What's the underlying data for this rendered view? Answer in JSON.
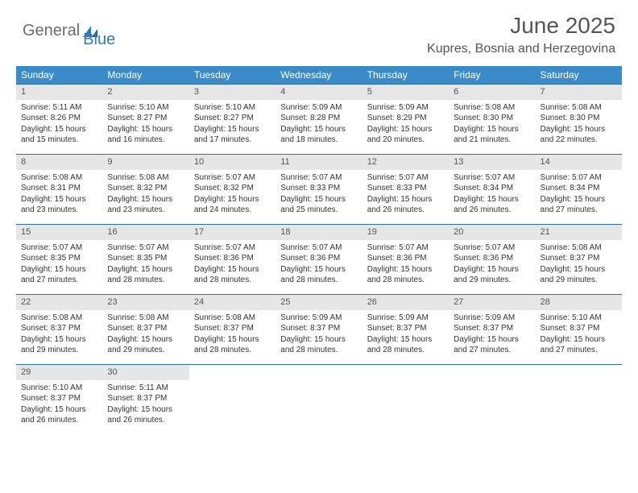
{
  "brand": {
    "part1": "General",
    "part2": "Blue"
  },
  "title": "June 2025",
  "location": "Kupres, Bosnia and Herzegovina",
  "style": {
    "header_bg": "#3b8bc9",
    "header_text": "#ffffff",
    "daynum_bg": "#e6e6e6",
    "week_border": "#2f6fa8",
    "body_text": "#333333",
    "title_color": "#555555",
    "logo_gray": "#6b6b6b",
    "logo_blue": "#2f7bbf",
    "title_fontsize": 28,
    "location_fontsize": 16,
    "dayheader_fontsize": 12,
    "cell_fontsize": 10
  },
  "dayNames": [
    "Sunday",
    "Monday",
    "Tuesday",
    "Wednesday",
    "Thursday",
    "Friday",
    "Saturday"
  ],
  "weeks": [
    [
      {
        "n": "1",
        "sunrise": "Sunrise: 5:11 AM",
        "sunset": "Sunset: 8:26 PM",
        "daylight": "Daylight: 15 hours and 15 minutes."
      },
      {
        "n": "2",
        "sunrise": "Sunrise: 5:10 AM",
        "sunset": "Sunset: 8:27 PM",
        "daylight": "Daylight: 15 hours and 16 minutes."
      },
      {
        "n": "3",
        "sunrise": "Sunrise: 5:10 AM",
        "sunset": "Sunset: 8:27 PM",
        "daylight": "Daylight: 15 hours and 17 minutes."
      },
      {
        "n": "4",
        "sunrise": "Sunrise: 5:09 AM",
        "sunset": "Sunset: 8:28 PM",
        "daylight": "Daylight: 15 hours and 18 minutes."
      },
      {
        "n": "5",
        "sunrise": "Sunrise: 5:09 AM",
        "sunset": "Sunset: 8:29 PM",
        "daylight": "Daylight: 15 hours and 20 minutes."
      },
      {
        "n": "6",
        "sunrise": "Sunrise: 5:08 AM",
        "sunset": "Sunset: 8:30 PM",
        "daylight": "Daylight: 15 hours and 21 minutes."
      },
      {
        "n": "7",
        "sunrise": "Sunrise: 5:08 AM",
        "sunset": "Sunset: 8:30 PM",
        "daylight": "Daylight: 15 hours and 22 minutes."
      }
    ],
    [
      {
        "n": "8",
        "sunrise": "Sunrise: 5:08 AM",
        "sunset": "Sunset: 8:31 PM",
        "daylight": "Daylight: 15 hours and 23 minutes."
      },
      {
        "n": "9",
        "sunrise": "Sunrise: 5:08 AM",
        "sunset": "Sunset: 8:32 PM",
        "daylight": "Daylight: 15 hours and 23 minutes."
      },
      {
        "n": "10",
        "sunrise": "Sunrise: 5:07 AM",
        "sunset": "Sunset: 8:32 PM",
        "daylight": "Daylight: 15 hours and 24 minutes."
      },
      {
        "n": "11",
        "sunrise": "Sunrise: 5:07 AM",
        "sunset": "Sunset: 8:33 PM",
        "daylight": "Daylight: 15 hours and 25 minutes."
      },
      {
        "n": "12",
        "sunrise": "Sunrise: 5:07 AM",
        "sunset": "Sunset: 8:33 PM",
        "daylight": "Daylight: 15 hours and 26 minutes."
      },
      {
        "n": "13",
        "sunrise": "Sunrise: 5:07 AM",
        "sunset": "Sunset: 8:34 PM",
        "daylight": "Daylight: 15 hours and 26 minutes."
      },
      {
        "n": "14",
        "sunrise": "Sunrise: 5:07 AM",
        "sunset": "Sunset: 8:34 PM",
        "daylight": "Daylight: 15 hours and 27 minutes."
      }
    ],
    [
      {
        "n": "15",
        "sunrise": "Sunrise: 5:07 AM",
        "sunset": "Sunset: 8:35 PM",
        "daylight": "Daylight: 15 hours and 27 minutes."
      },
      {
        "n": "16",
        "sunrise": "Sunrise: 5:07 AM",
        "sunset": "Sunset: 8:35 PM",
        "daylight": "Daylight: 15 hours and 28 minutes."
      },
      {
        "n": "17",
        "sunrise": "Sunrise: 5:07 AM",
        "sunset": "Sunset: 8:36 PM",
        "daylight": "Daylight: 15 hours and 28 minutes."
      },
      {
        "n": "18",
        "sunrise": "Sunrise: 5:07 AM",
        "sunset": "Sunset: 8:36 PM",
        "daylight": "Daylight: 15 hours and 28 minutes."
      },
      {
        "n": "19",
        "sunrise": "Sunrise: 5:07 AM",
        "sunset": "Sunset: 8:36 PM",
        "daylight": "Daylight: 15 hours and 28 minutes."
      },
      {
        "n": "20",
        "sunrise": "Sunrise: 5:07 AM",
        "sunset": "Sunset: 8:36 PM",
        "daylight": "Daylight: 15 hours and 29 minutes."
      },
      {
        "n": "21",
        "sunrise": "Sunrise: 5:08 AM",
        "sunset": "Sunset: 8:37 PM",
        "daylight": "Daylight: 15 hours and 29 minutes."
      }
    ],
    [
      {
        "n": "22",
        "sunrise": "Sunrise: 5:08 AM",
        "sunset": "Sunset: 8:37 PM",
        "daylight": "Daylight: 15 hours and 29 minutes."
      },
      {
        "n": "23",
        "sunrise": "Sunrise: 5:08 AM",
        "sunset": "Sunset: 8:37 PM",
        "daylight": "Daylight: 15 hours and 29 minutes."
      },
      {
        "n": "24",
        "sunrise": "Sunrise: 5:08 AM",
        "sunset": "Sunset: 8:37 PM",
        "daylight": "Daylight: 15 hours and 28 minutes."
      },
      {
        "n": "25",
        "sunrise": "Sunrise: 5:09 AM",
        "sunset": "Sunset: 8:37 PM",
        "daylight": "Daylight: 15 hours and 28 minutes."
      },
      {
        "n": "26",
        "sunrise": "Sunrise: 5:09 AM",
        "sunset": "Sunset: 8:37 PM",
        "daylight": "Daylight: 15 hours and 28 minutes."
      },
      {
        "n": "27",
        "sunrise": "Sunrise: 5:09 AM",
        "sunset": "Sunset: 8:37 PM",
        "daylight": "Daylight: 15 hours and 27 minutes."
      },
      {
        "n": "28",
        "sunrise": "Sunrise: 5:10 AM",
        "sunset": "Sunset: 8:37 PM",
        "daylight": "Daylight: 15 hours and 27 minutes."
      }
    ],
    [
      {
        "n": "29",
        "sunrise": "Sunrise: 5:10 AM",
        "sunset": "Sunset: 8:37 PM",
        "daylight": "Daylight: 15 hours and 26 minutes."
      },
      {
        "n": "30",
        "sunrise": "Sunrise: 5:11 AM",
        "sunset": "Sunset: 8:37 PM",
        "daylight": "Daylight: 15 hours and 26 minutes."
      },
      null,
      null,
      null,
      null,
      null
    ]
  ]
}
